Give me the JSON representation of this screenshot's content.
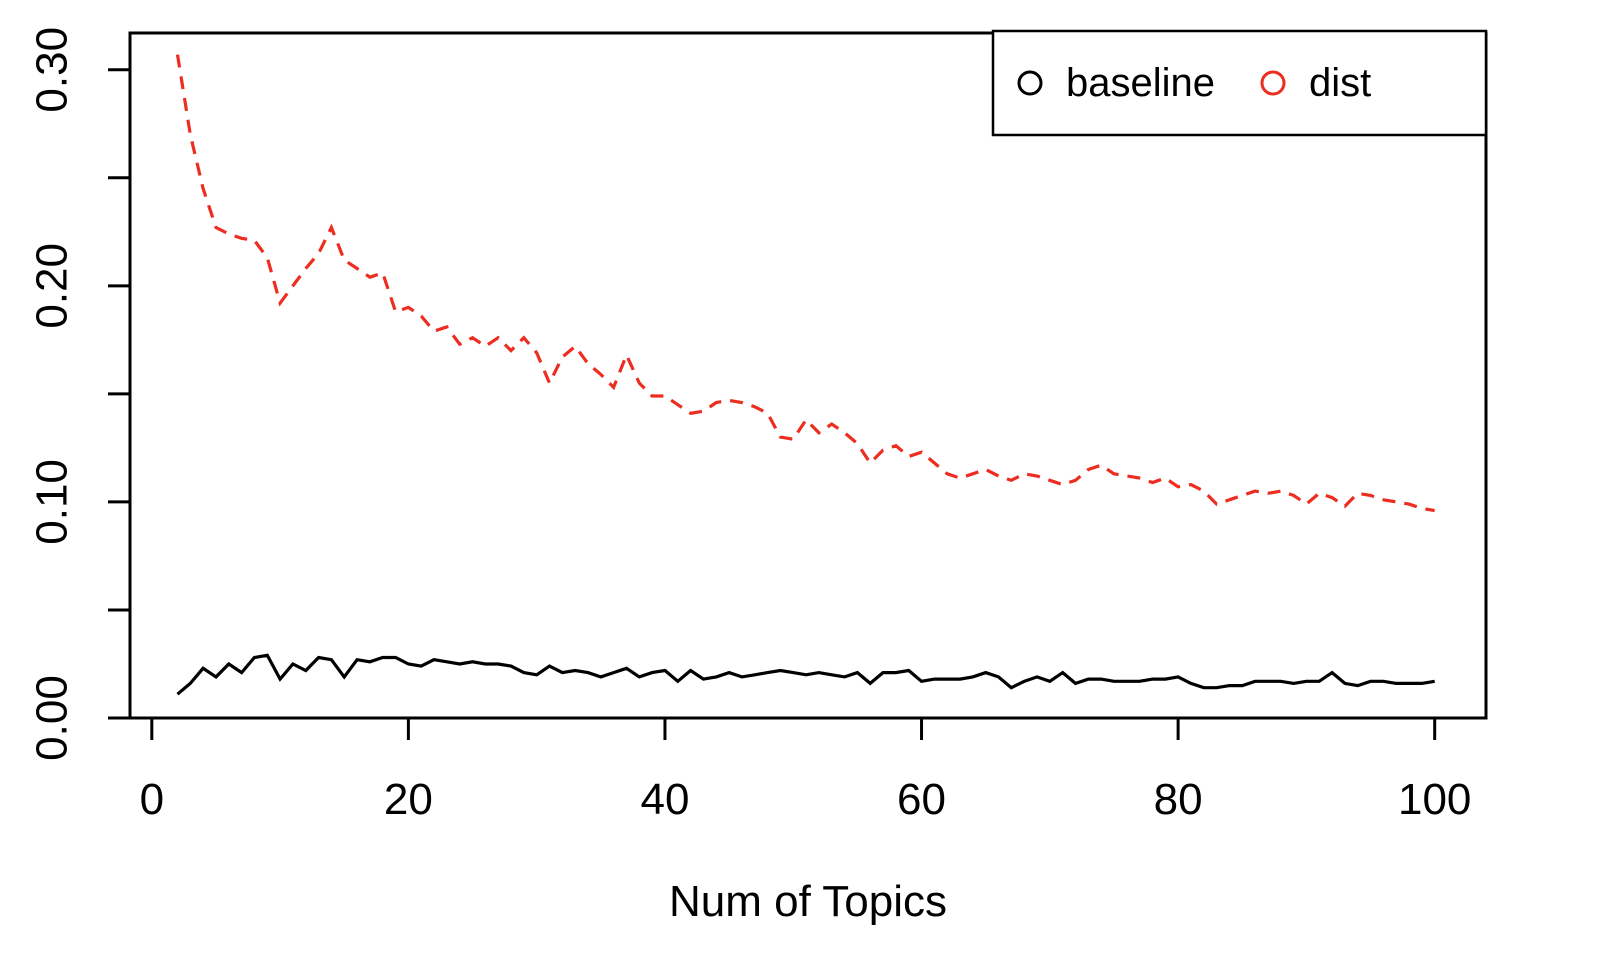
{
  "page": {
    "background": "#ffffff"
  },
  "chart_data": {
    "type": "line",
    "title": "",
    "xlabel": "Num of Topics",
    "ylabel": "",
    "xlim": [
      -1.7,
      104.0
    ],
    "ylim": [
      0,
      0.317
    ],
    "grid": false,
    "plot_style": "r-base-box",
    "x_axis": {
      "tick_values": [
        0,
        20,
        40,
        60,
        80,
        100
      ],
      "tick_labels": [
        "0",
        "20",
        "40",
        "60",
        "80",
        "100"
      ]
    },
    "y_axis": {
      "tick_values": [
        0,
        0.05,
        0.1,
        0.15,
        0.2,
        0.25,
        0.3
      ],
      "tick_labels": [
        "0.00",
        "",
        "0.10",
        "",
        "0.20",
        "",
        "0.30"
      ]
    },
    "legend": {
      "position": "top-right",
      "marker": "open-circle",
      "entries": [
        {
          "label": "baseline",
          "color": "#000000"
        },
        {
          "label": "dist",
          "color": "#ed2d20"
        }
      ]
    },
    "x": [
      2,
      3,
      4,
      5,
      6,
      7,
      8,
      9,
      10,
      11,
      12,
      13,
      14,
      15,
      16,
      17,
      18,
      19,
      20,
      21,
      22,
      23,
      24,
      25,
      26,
      27,
      28,
      29,
      30,
      31,
      32,
      33,
      34,
      35,
      36,
      37,
      38,
      39,
      40,
      41,
      42,
      43,
      44,
      45,
      46,
      47,
      48,
      49,
      50,
      51,
      52,
      53,
      54,
      55,
      56,
      57,
      58,
      59,
      60,
      61,
      62,
      63,
      64,
      65,
      66,
      67,
      68,
      69,
      70,
      71,
      72,
      73,
      74,
      75,
      76,
      77,
      78,
      79,
      80,
      81,
      82,
      83,
      84,
      85,
      86,
      87,
      88,
      89,
      90,
      91,
      92,
      93,
      94,
      95,
      96,
      97,
      98,
      99,
      100
    ],
    "series": [
      {
        "name": "baseline",
        "color": "#000000",
        "line_style": "solid",
        "values": [
          0.011,
          0.016,
          0.023,
          0.019,
          0.025,
          0.021,
          0.028,
          0.029,
          0.018,
          0.025,
          0.022,
          0.028,
          0.027,
          0.019,
          0.027,
          0.026,
          0.028,
          0.028,
          0.025,
          0.024,
          0.027,
          0.026,
          0.025,
          0.026,
          0.025,
          0.025,
          0.024,
          0.021,
          0.02,
          0.024,
          0.021,
          0.022,
          0.021,
          0.019,
          0.021,
          0.023,
          0.019,
          0.021,
          0.022,
          0.017,
          0.022,
          0.018,
          0.019,
          0.021,
          0.019,
          0.02,
          0.021,
          0.022,
          0.021,
          0.02,
          0.021,
          0.02,
          0.019,
          0.021,
          0.016,
          0.021,
          0.021,
          0.022,
          0.017,
          0.018,
          0.018,
          0.018,
          0.019,
          0.021,
          0.019,
          0.014,
          0.017,
          0.019,
          0.017,
          0.021,
          0.016,
          0.018,
          0.018,
          0.017,
          0.017,
          0.017,
          0.018,
          0.018,
          0.019,
          0.016,
          0.014,
          0.014,
          0.015,
          0.015,
          0.017,
          0.017,
          0.017,
          0.016,
          0.017,
          0.017,
          0.021,
          0.016,
          0.015,
          0.017,
          0.017,
          0.016,
          0.016,
          0.016,
          0.017
        ]
      },
      {
        "name": "dist",
        "color": "#ed2d20",
        "line_style": "dashed",
        "values": [
          0.307,
          0.27,
          0.245,
          0.227,
          0.224,
          0.222,
          0.221,
          0.213,
          0.192,
          0.2,
          0.208,
          0.215,
          0.227,
          0.212,
          0.208,
          0.204,
          0.206,
          0.188,
          0.19,
          0.186,
          0.179,
          0.181,
          0.173,
          0.176,
          0.172,
          0.176,
          0.17,
          0.176,
          0.169,
          0.155,
          0.167,
          0.172,
          0.164,
          0.159,
          0.153,
          0.168,
          0.155,
          0.149,
          0.149,
          0.145,
          0.141,
          0.142,
          0.146,
          0.147,
          0.146,
          0.144,
          0.141,
          0.13,
          0.129,
          0.138,
          0.132,
          0.136,
          0.132,
          0.127,
          0.118,
          0.124,
          0.126,
          0.121,
          0.123,
          0.118,
          0.113,
          0.111,
          0.113,
          0.115,
          0.112,
          0.11,
          0.113,
          0.112,
          0.11,
          0.108,
          0.11,
          0.115,
          0.117,
          0.113,
          0.112,
          0.111,
          0.109,
          0.111,
          0.107,
          0.108,
          0.105,
          0.099,
          0.101,
          0.103,
          0.105,
          0.104,
          0.105,
          0.103,
          0.099,
          0.104,
          0.102,
          0.098,
          0.104,
          0.103,
          0.101,
          0.1,
          0.099,
          0.097,
          0.096
        ]
      }
    ]
  }
}
